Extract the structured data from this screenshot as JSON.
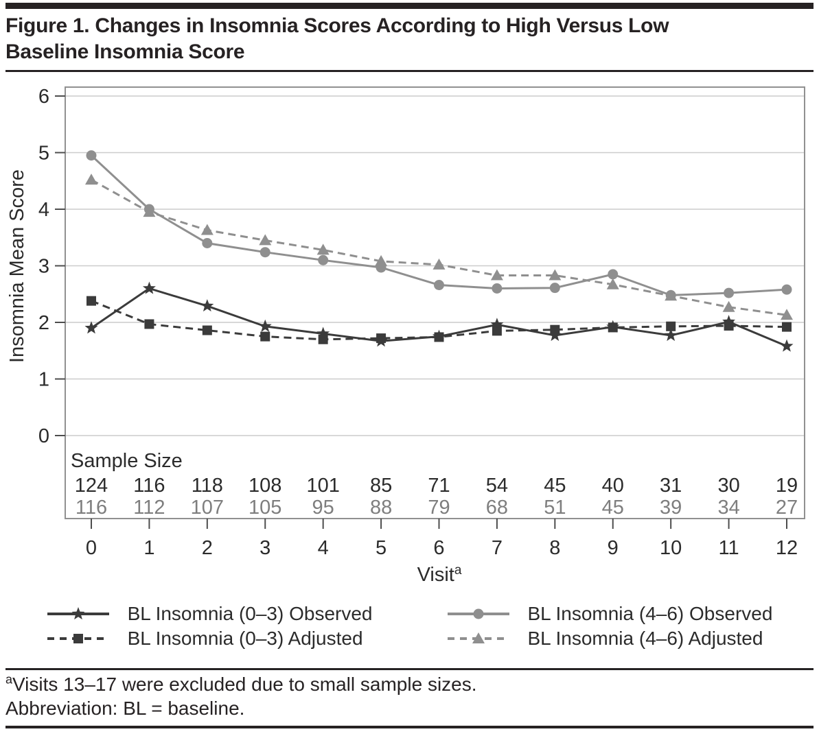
{
  "header": {
    "title_line1": "Figure 1. Changes in Insomnia Scores According to High Versus Low",
    "title_line2": "Baseline Insomnia Score"
  },
  "chart_data": {
    "type": "line",
    "x": [
      0,
      1,
      2,
      3,
      4,
      5,
      6,
      7,
      8,
      9,
      10,
      11,
      12
    ],
    "series": [
      {
        "name": "BL Insomnia (0–3) Observed",
        "marker": "star",
        "line": "solid",
        "color": "#3b3b3b",
        "values": [
          1.9,
          2.6,
          2.29,
          1.93,
          1.8,
          1.67,
          1.75,
          1.96,
          1.77,
          1.92,
          1.77,
          2.01,
          1.58
        ]
      },
      {
        "name": "BL Insomnia (0–3) Adjusted",
        "marker": "square",
        "line": "dashed",
        "color": "#3b3b3b",
        "values": [
          2.38,
          1.97,
          1.86,
          1.75,
          1.7,
          1.72,
          1.74,
          1.85,
          1.87,
          1.91,
          1.93,
          1.94,
          1.92
        ]
      },
      {
        "name": "BL Insomnia (4–6) Observed",
        "marker": "circle",
        "line": "solid",
        "color": "#8f8f8f",
        "values": [
          4.95,
          4.0,
          3.4,
          3.24,
          3.1,
          2.97,
          2.66,
          2.6,
          2.61,
          2.85,
          2.48,
          2.52,
          2.58
        ]
      },
      {
        "name": "BL Insomnia (4–6) Adjusted",
        "marker": "triangle",
        "line": "dashed",
        "color": "#8f8f8f",
        "values": [
          4.52,
          3.95,
          3.63,
          3.45,
          3.28,
          3.08,
          3.02,
          2.83,
          2.83,
          2.67,
          2.47,
          2.27,
          2.13
        ]
      }
    ],
    "title": "",
    "xlabel": "Visit",
    "xlabel_sup": "a",
    "ylabel": "Insomnia Mean Score",
    "ylim": [
      0,
      6
    ],
    "yticks": [
      0,
      1,
      2,
      3,
      4,
      5,
      6
    ],
    "grid": true,
    "legend_position": "bottom",
    "sample_size": {
      "label": "Sample Size",
      "rows": [
        {
          "color": "#2b2b2b",
          "values": [
            124,
            116,
            118,
            108,
            101,
            85,
            71,
            54,
            45,
            40,
            31,
            30,
            19
          ]
        },
        {
          "color": "#7e7e7e",
          "values": [
            116,
            112,
            107,
            105,
            95,
            88,
            79,
            68,
            51,
            45,
            39,
            34,
            27
          ]
        }
      ]
    }
  },
  "legend": {
    "items": [
      {
        "label": "BL Insomnia (0–3) Observed",
        "marker": "star",
        "line": "solid",
        "color": "#3b3b3b"
      },
      {
        "label": "BL Insomnia (0–3) Adjusted",
        "marker": "square",
        "line": "dashed",
        "color": "#3b3b3b"
      },
      {
        "label": "BL Insomnia (4–6) Observed",
        "marker": "circle",
        "line": "solid",
        "color": "#8f8f8f"
      },
      {
        "label": "BL Insomnia (4–6) Adjusted",
        "marker": "triangle",
        "line": "dashed",
        "color": "#8f8f8f"
      }
    ]
  },
  "footnotes": {
    "sup1": "a",
    "line1": "Visits 13–17 were excluded due to small sample sizes.",
    "line2": "Abbreviation: BL = baseline."
  },
  "colors": {
    "ink": "#262223",
    "grid": "#cccccc",
    "plot_border": "#909090",
    "tick": "#4d4d4d",
    "dark_series": "#3b3b3b",
    "gray_series": "#8f8f8f"
  }
}
